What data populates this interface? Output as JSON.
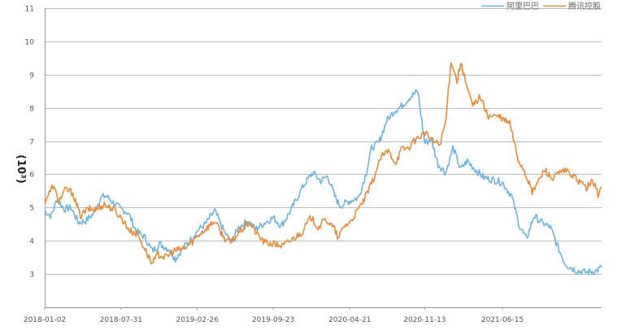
{
  "chart_data": {
    "type": "line",
    "title": "",
    "xlabel": "",
    "ylabel": "(10^3)",
    "ylabel_display": "(10³)",
    "ylim": [
      2,
      11
    ],
    "y_ticks": [
      "3",
      "4",
      "5",
      "6",
      "7",
      "8",
      "9",
      "10",
      "11"
    ],
    "x_tick_labels": [
      "2018-01-02",
      "2018-07-31",
      "2019-02-26",
      "2019-09-23",
      "2020-04-21",
      "2020-11-13",
      "2021-06-15"
    ],
    "x_range": [
      "2018-01-02",
      "2022-03-15"
    ],
    "grid": true,
    "legend_position": "top-right",
    "series": [
      {
        "name": "阿里巴巴",
        "color": "#6ab5e6",
        "points": [
          [
            "2018-01-02",
            4.9
          ],
          [
            "2018-01-20",
            4.75
          ],
          [
            "2018-02-05",
            5.25
          ],
          [
            "2018-02-25",
            4.95
          ],
          [
            "2018-03-15",
            5.0
          ],
          [
            "2018-04-05",
            4.55
          ],
          [
            "2018-04-25",
            4.6
          ],
          [
            "2018-05-15",
            4.8
          ],
          [
            "2018-06-05",
            5.3
          ],
          [
            "2018-06-20",
            5.35
          ],
          [
            "2018-07-10",
            5.15
          ],
          [
            "2018-07-31",
            4.95
          ],
          [
            "2018-08-20",
            4.85
          ],
          [
            "2018-09-10",
            4.3
          ],
          [
            "2018-10-05",
            4.1
          ],
          [
            "2018-10-25",
            3.7
          ],
          [
            "2018-11-15",
            3.9
          ],
          [
            "2018-12-10",
            3.75
          ],
          [
            "2018-12-28",
            3.45
          ],
          [
            "2019-01-15",
            3.75
          ],
          [
            "2019-02-05",
            4.0
          ],
          [
            "2019-02-26",
            4.3
          ],
          [
            "2019-03-20",
            4.5
          ],
          [
            "2019-04-15",
            4.9
          ],
          [
            "2019-05-10",
            4.3
          ],
          [
            "2019-05-30",
            3.95
          ],
          [
            "2019-06-20",
            4.4
          ],
          [
            "2019-07-15",
            4.6
          ],
          [
            "2019-08-05",
            4.35
          ],
          [
            "2019-09-01",
            4.55
          ],
          [
            "2019-09-23",
            4.7
          ],
          [
            "2019-10-15",
            4.45
          ],
          [
            "2019-11-10",
            4.9
          ],
          [
            "2019-11-28",
            5.3
          ],
          [
            "2019-12-15",
            5.65
          ],
          [
            "2020-01-10",
            6.05
          ],
          [
            "2020-02-01",
            5.8
          ],
          [
            "2020-02-20",
            5.95
          ],
          [
            "2020-03-10",
            5.35
          ],
          [
            "2020-03-25",
            5.05
          ],
          [
            "2020-04-21",
            5.2
          ],
          [
            "2020-05-15",
            5.3
          ],
          [
            "2020-06-05",
            6.05
          ],
          [
            "2020-06-20",
            6.8
          ],
          [
            "2020-07-10",
            6.95
          ],
          [
            "2020-07-31",
            7.6
          ],
          [
            "2020-08-20",
            7.9
          ],
          [
            "2020-09-10",
            8.05
          ],
          [
            "2020-10-01",
            8.3
          ],
          [
            "2020-10-25",
            8.5
          ],
          [
            "2020-11-13",
            6.95
          ],
          [
            "2020-12-01",
            7.05
          ],
          [
            "2020-12-20",
            6.3
          ],
          [
            "2021-01-10",
            6.05
          ],
          [
            "2021-01-30",
            6.8
          ],
          [
            "2021-02-20",
            6.15
          ],
          [
            "2021-03-10",
            6.4
          ],
          [
            "2021-04-01",
            6.15
          ],
          [
            "2021-04-25",
            5.9
          ],
          [
            "2021-05-15",
            5.85
          ],
          [
            "2021-06-15",
            5.75
          ],
          [
            "2021-07-10",
            5.35
          ],
          [
            "2021-08-01",
            4.45
          ],
          [
            "2021-08-20",
            4.05
          ],
          [
            "2021-09-10",
            4.75
          ],
          [
            "2021-10-01",
            4.55
          ],
          [
            "2021-10-25",
            4.4
          ],
          [
            "2021-11-15",
            3.8
          ],
          [
            "2021-12-05",
            3.3
          ],
          [
            "2022-01-05",
            3.1
          ],
          [
            "2022-02-01",
            3.05
          ],
          [
            "2022-03-01",
            3.1
          ],
          [
            "2022-03-15",
            3.2
          ]
        ]
      },
      {
        "name": "腾讯控股",
        "color": "#ee8a35",
        "points": [
          [
            "2018-01-02",
            5.2
          ],
          [
            "2018-01-25",
            5.65
          ],
          [
            "2018-02-10",
            5.2
          ],
          [
            "2018-03-01",
            5.55
          ],
          [
            "2018-03-20",
            5.45
          ],
          [
            "2018-04-10",
            4.75
          ],
          [
            "2018-05-01",
            4.95
          ],
          [
            "2018-05-25",
            4.95
          ],
          [
            "2018-06-15",
            5.1
          ],
          [
            "2018-07-10",
            4.95
          ],
          [
            "2018-07-31",
            4.7
          ],
          [
            "2018-08-25",
            4.3
          ],
          [
            "2018-09-15",
            4.2
          ],
          [
            "2018-10-05",
            3.75
          ],
          [
            "2018-10-25",
            3.3
          ],
          [
            "2018-11-10",
            3.6
          ],
          [
            "2018-12-01",
            3.5
          ],
          [
            "2018-12-25",
            3.7
          ],
          [
            "2019-01-20",
            3.75
          ],
          [
            "2019-02-10",
            3.95
          ],
          [
            "2019-02-26",
            4.15
          ],
          [
            "2019-03-20",
            4.35
          ],
          [
            "2019-04-15",
            4.6
          ],
          [
            "2019-05-10",
            4.1
          ],
          [
            "2019-05-30",
            3.95
          ],
          [
            "2019-06-25",
            4.3
          ],
          [
            "2019-07-20",
            4.55
          ],
          [
            "2019-08-10",
            4.2
          ],
          [
            "2019-08-30",
            3.95
          ],
          [
            "2019-09-23",
            3.9
          ],
          [
            "2019-10-20",
            3.85
          ],
          [
            "2019-11-15",
            4.05
          ],
          [
            "2019-12-10",
            4.25
          ],
          [
            "2020-01-05",
            4.7
          ],
          [
            "2020-01-25",
            4.4
          ],
          [
            "2020-02-15",
            4.65
          ],
          [
            "2020-03-10",
            4.35
          ],
          [
            "2020-03-20",
            4.05
          ],
          [
            "2020-04-05",
            4.45
          ],
          [
            "2020-04-21",
            4.55
          ],
          [
            "2020-05-15",
            4.95
          ],
          [
            "2020-06-05",
            5.35
          ],
          [
            "2020-06-25",
            5.85
          ],
          [
            "2020-07-15",
            6.5
          ],
          [
            "2020-08-05",
            6.7
          ],
          [
            "2020-08-25",
            6.35
          ],
          [
            "2020-09-10",
            6.75
          ],
          [
            "2020-09-30",
            6.8
          ],
          [
            "2020-10-20",
            7.05
          ],
          [
            "2020-11-13",
            7.25
          ],
          [
            "2020-12-05",
            7.0
          ],
          [
            "2020-12-25",
            6.9
          ],
          [
            "2021-01-10",
            7.6
          ],
          [
            "2021-01-25",
            9.45
          ],
          [
            "2021-02-10",
            8.8
          ],
          [
            "2021-02-20",
            9.35
          ],
          [
            "2021-03-10",
            8.6
          ],
          [
            "2021-03-25",
            8.05
          ],
          [
            "2021-04-15",
            8.35
          ],
          [
            "2021-05-05",
            7.75
          ],
          [
            "2021-06-01",
            7.75
          ],
          [
            "2021-06-15",
            7.65
          ],
          [
            "2021-07-05",
            7.55
          ],
          [
            "2021-07-28",
            6.45
          ],
          [
            "2021-08-15",
            6.1
          ],
          [
            "2021-09-05",
            5.45
          ],
          [
            "2021-09-20",
            5.75
          ],
          [
            "2021-10-10",
            6.15
          ],
          [
            "2021-10-30",
            5.85
          ],
          [
            "2021-11-20",
            6.05
          ],
          [
            "2021-12-10",
            6.1
          ],
          [
            "2022-01-05",
            5.85
          ],
          [
            "2022-02-01",
            5.6
          ],
          [
            "2022-02-20",
            5.8
          ],
          [
            "2022-03-05",
            5.4
          ],
          [
            "2022-03-15",
            5.6
          ]
        ]
      }
    ]
  }
}
